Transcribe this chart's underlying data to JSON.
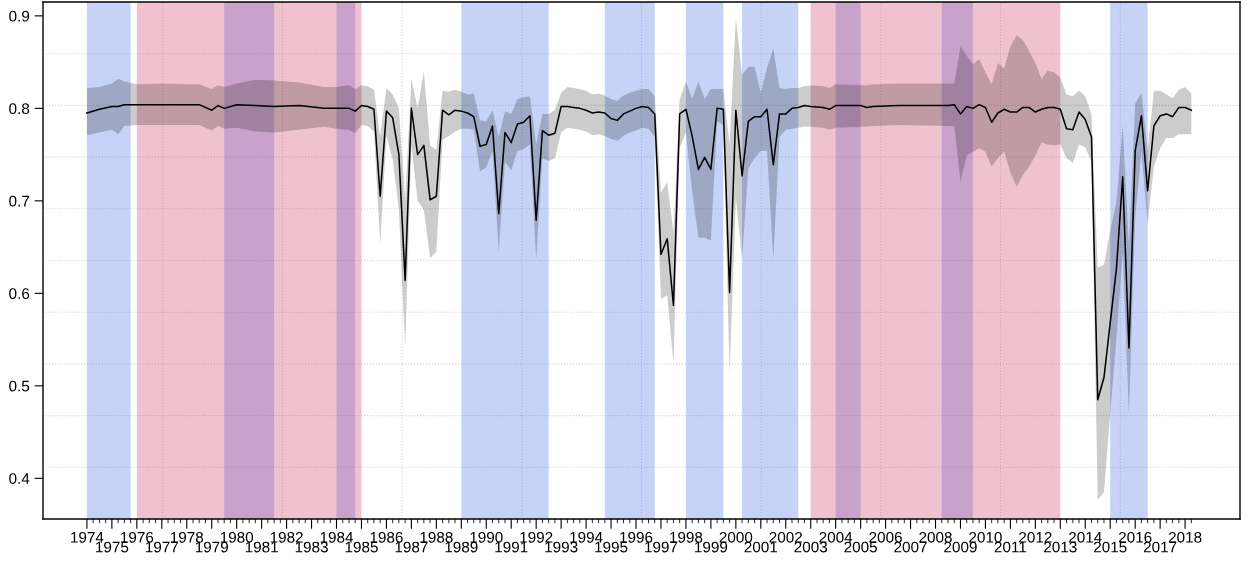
{
  "chart_data": {
    "type": "line",
    "x": [
      1974.0,
      1974.5,
      1975.0,
      1975.25,
      1975.5,
      1976.0,
      1977.0,
      1978.0,
      1978.5,
      1979.0,
      1979.25,
      1979.5,
      1980.0,
      1980.75,
      1981.5,
      1982.5,
      1983.5,
      1984.0,
      1984.5,
      1984.75,
      1985.0,
      1985.25,
      1985.5,
      1985.75,
      1986.0,
      1986.25,
      1986.5,
      1986.75,
      1987.0,
      1987.25,
      1987.5,
      1987.75,
      1988.0,
      1988.25,
      1988.5,
      1988.75,
      1989.0,
      1989.25,
      1989.5,
      1989.75,
      1990.0,
      1990.25,
      1990.5,
      1990.75,
      1991.0,
      1991.25,
      1991.5,
      1991.75,
      1992.0,
      1992.25,
      1992.5,
      1992.75,
      1993.0,
      1993.25,
      1993.5,
      1993.75,
      1994.0,
      1994.25,
      1994.5,
      1994.75,
      1995.0,
      1995.25,
      1995.5,
      1995.75,
      1996.0,
      1996.25,
      1996.5,
      1996.75,
      1997.0,
      1997.25,
      1997.5,
      1997.75,
      1998.0,
      1998.25,
      1998.5,
      1998.75,
      1999.0,
      1999.25,
      1999.5,
      1999.75,
      2000.0,
      2000.25,
      2000.5,
      2000.75,
      2001.0,
      2001.25,
      2001.5,
      2001.75,
      2002.0,
      2002.25,
      2002.5,
      2002.75,
      2003.0,
      2003.5,
      2003.75,
      2004.0,
      2005.0,
      2005.25,
      2005.5,
      2006.5,
      2008.5,
      2008.75,
      2009.0,
      2009.25,
      2009.5,
      2009.75,
      2010.0,
      2010.25,
      2010.5,
      2010.75,
      2011.0,
      2011.25,
      2011.5,
      2011.75,
      2012.0,
      2012.25,
      2012.5,
      2012.75,
      2013.0,
      2013.25,
      2013.5,
      2013.75,
      2014.0,
      2014.25,
      2014.5,
      2014.75,
      2015.0,
      2015.25,
      2015.5,
      2015.75,
      2016.0,
      2016.25,
      2016.5,
      2016.75,
      2017.0,
      2017.25,
      2017.5,
      2017.75,
      2018.0,
      2018.25
    ],
    "series": [
      {
        "color": "#000000",
        "values": [
          0.795,
          0.799,
          0.802,
          0.802,
          0.804,
          0.804,
          0.804,
          0.804,
          0.804,
          0.798,
          0.803,
          0.8,
          0.804,
          0.803,
          0.802,
          0.803,
          0.8,
          0.8,
          0.8,
          0.797,
          0.803,
          0.802,
          0.799,
          0.705,
          0.797,
          0.79,
          0.75,
          0.614,
          0.8,
          0.75,
          0.76,
          0.701,
          0.705,
          0.798,
          0.793,
          0.798,
          0.797,
          0.795,
          0.791,
          0.759,
          0.761,
          0.781,
          0.686,
          0.774,
          0.763,
          0.783,
          0.785,
          0.792,
          0.679,
          0.776,
          0.771,
          0.773,
          0.802,
          0.802,
          0.801,
          0.8,
          0.798,
          0.795,
          0.796,
          0.795,
          0.789,
          0.787,
          0.794,
          0.797,
          0.8,
          0.802,
          0.801,
          0.794,
          0.642,
          0.659,
          0.587,
          0.794,
          0.799,
          0.77,
          0.734,
          0.747,
          0.734,
          0.8,
          0.799,
          0.601,
          0.798,
          0.727,
          0.786,
          0.791,
          0.791,
          0.799,
          0.739,
          0.794,
          0.794,
          0.8,
          0.801,
          0.803,
          0.802,
          0.801,
          0.799,
          0.803,
          0.803,
          0.801,
          0.802,
          0.803,
          0.803,
          0.804,
          0.794,
          0.802,
          0.8,
          0.804,
          0.801,
          0.785,
          0.795,
          0.799,
          0.796,
          0.796,
          0.801,
          0.801,
          0.796,
          0.799,
          0.801,
          0.801,
          0.799,
          0.778,
          0.777,
          0.796,
          0.788,
          0.769,
          0.485,
          0.509,
          0.568,
          0.627,
          0.726,
          0.541,
          0.754,
          0.792,
          0.711,
          0.781,
          0.792,
          0.794,
          0.791,
          0.801,
          0.801,
          0.798
        ],
        "lower": [
          0.771,
          0.774,
          0.777,
          0.772,
          0.781,
          0.782,
          0.782,
          0.782,
          0.782,
          0.776,
          0.781,
          0.778,
          0.779,
          0.775,
          0.774,
          0.777,
          0.78,
          0.778,
          0.777,
          0.773,
          0.782,
          0.781,
          0.775,
          0.653,
          0.77,
          0.745,
          0.69,
          0.541,
          0.76,
          0.7,
          0.69,
          0.638,
          0.645,
          0.766,
          0.77,
          0.775,
          0.778,
          0.778,
          0.777,
          0.732,
          0.736,
          0.754,
          0.645,
          0.742,
          0.733,
          0.754,
          0.756,
          0.761,
          0.637,
          0.746,
          0.743,
          0.746,
          0.774,
          0.779,
          0.778,
          0.777,
          0.775,
          0.771,
          0.772,
          0.77,
          0.767,
          0.765,
          0.77,
          0.774,
          0.776,
          0.779,
          0.778,
          0.769,
          0.594,
          0.598,
          0.524,
          0.757,
          0.774,
          0.71,
          0.66,
          0.66,
          0.657,
          0.786,
          0.782,
          0.513,
          0.703,
          0.637,
          0.735,
          0.746,
          0.754,
          0.754,
          0.637,
          0.769,
          0.777,
          0.778,
          0.779,
          0.78,
          0.78,
          0.779,
          0.777,
          0.779,
          0.78,
          0.78,
          0.781,
          0.782,
          0.781,
          0.781,
          0.721,
          0.749,
          0.753,
          0.757,
          0.753,
          0.737,
          0.746,
          0.753,
          0.731,
          0.715,
          0.728,
          0.737,
          0.749,
          0.763,
          0.761,
          0.76,
          0.761,
          0.746,
          0.741,
          0.761,
          0.758,
          0.742,
          0.377,
          0.385,
          0.469,
          0.551,
          0.644,
          0.469,
          0.682,
          0.753,
          0.675,
          0.737,
          0.757,
          0.768,
          0.768,
          0.772,
          0.772,
          0.772
        ],
        "upper": [
          0.822,
          0.823,
          0.827,
          0.832,
          0.829,
          0.826,
          0.827,
          0.826,
          0.826,
          0.821,
          0.825,
          0.823,
          0.827,
          0.831,
          0.83,
          0.828,
          0.823,
          0.823,
          0.825,
          0.821,
          0.825,
          0.824,
          0.82,
          0.77,
          0.822,
          0.815,
          0.8,
          0.7,
          0.832,
          0.8,
          0.84,
          0.76,
          0.755,
          0.819,
          0.818,
          0.82,
          0.818,
          0.815,
          0.816,
          0.787,
          0.786,
          0.798,
          0.769,
          0.797,
          0.794,
          0.81,
          0.812,
          0.813,
          0.761,
          0.794,
          0.794,
          0.798,
          0.817,
          0.823,
          0.822,
          0.821,
          0.819,
          0.815,
          0.816,
          0.814,
          0.81,
          0.808,
          0.814,
          0.817,
          0.819,
          0.821,
          0.821,
          0.813,
          0.709,
          0.72,
          0.666,
          0.81,
          0.829,
          0.81,
          0.829,
          0.81,
          0.821,
          0.821,
          0.821,
          0.761,
          0.898,
          0.836,
          0.845,
          0.845,
          0.817,
          0.844,
          0.865,
          0.822,
          0.821,
          0.822,
          0.822,
          0.824,
          0.825,
          0.824,
          0.822,
          0.826,
          0.825,
          0.825,
          0.826,
          0.827,
          0.827,
          0.827,
          0.867,
          0.857,
          0.848,
          0.853,
          0.839,
          0.826,
          0.849,
          0.843,
          0.867,
          0.879,
          0.874,
          0.862,
          0.849,
          0.832,
          0.841,
          0.839,
          0.833,
          0.815,
          0.813,
          0.819,
          0.813,
          0.793,
          0.628,
          0.631,
          0.668,
          0.699,
          0.782,
          0.652,
          0.805,
          0.817,
          0.755,
          0.819,
          0.819,
          0.815,
          0.811,
          0.82,
          0.823,
          0.816
        ]
      }
    ],
    "bands": [
      {
        "axis": "x",
        "from": 1974.0,
        "to": 1975.75,
        "color": "#4169e1"
      },
      {
        "axis": "x",
        "from": 1979.5,
        "to": 1981.5,
        "color": "#4169e1"
      },
      {
        "axis": "x",
        "from": 1984.0,
        "to": 1984.75,
        "color": "#4169e1"
      },
      {
        "axis": "x",
        "from": 1989.0,
        "to": 1992.5,
        "color": "#4169e1"
      },
      {
        "axis": "x",
        "from": 1994.75,
        "to": 1996.75,
        "color": "#4169e1"
      },
      {
        "axis": "x",
        "from": 1998.0,
        "to": 1999.5,
        "color": "#4169e1"
      },
      {
        "axis": "x",
        "from": 2000.25,
        "to": 2002.5,
        "color": "#4169e1"
      },
      {
        "axis": "x",
        "from": 2004.0,
        "to": 2005.0,
        "color": "#4169e1"
      },
      {
        "axis": "x",
        "from": 2008.25,
        "to": 2009.5,
        "color": "#4169e1"
      },
      {
        "axis": "x",
        "from": 2015.0,
        "to": 2016.5,
        "color": "#4169e1"
      },
      {
        "axis": "x",
        "from": 1976.0,
        "to": 1985.0,
        "color": "#cd3462"
      },
      {
        "axis": "x",
        "from": 2003.0,
        "to": 2013.0,
        "color": "#cd3462"
      }
    ],
    "xlim": [
      1972.24,
      2020.2
    ],
    "ylim": [
      0.356,
      0.915
    ],
    "yticks": [
      0.4,
      0.5,
      0.6,
      0.7,
      0.8,
      0.9
    ],
    "x2lim": [
      1972.24,
      2020.2
    ],
    "x2ticks": [
      1975,
      1977,
      1979,
      1981,
      1983,
      1985,
      1987,
      1989,
      1991,
      1993,
      1995,
      1997,
      1999,
      2001,
      2003,
      2005,
      2007,
      2009,
      2011,
      2013,
      2015,
      2017
    ],
    "xticks": [
      1974,
      1976,
      1978,
      1980,
      1982,
      1984,
      1986,
      1988,
      1990,
      1992,
      1994,
      1996,
      1998,
      2000,
      2002,
      2004,
      2006,
      2008,
      2010,
      2012,
      2014,
      2016,
      2018,
      {
        "value": 1975,
        "label": null
      },
      {
        "value": 1977,
        "label": null
      },
      {
        "value": 1979,
        "label": null
      },
      {
        "value": 1981,
        "label": null
      },
      {
        "value": 1983,
        "label": null
      },
      {
        "value": 1985,
        "label": null
      },
      {
        "value": 1987,
        "label": null
      },
      {
        "value": 1989,
        "label": null
      },
      {
        "value": 1991,
        "label": null
      },
      {
        "value": 1993,
        "label": null
      },
      {
        "value": 1995,
        "label": null
      },
      {
        "value": 1997,
        "label": null
      },
      {
        "value": 1999,
        "label": null
      },
      {
        "value": 2001,
        "label": null
      },
      {
        "value": 2003,
        "label": null
      },
      {
        "value": 2005,
        "label": null
      },
      {
        "value": 2007,
        "label": null
      },
      {
        "value": 2009,
        "label": null
      },
      {
        "value": 2011,
        "label": null
      },
      {
        "value": 2013,
        "label": null
      },
      {
        "value": 2015,
        "label": null
      },
      {
        "value": 2017,
        "label": null
      },
      {
        "value": 1974.25,
        "label": null
      },
      {
        "value": 1974.5,
        "label": null
      },
      {
        "value": 1974.75,
        "label": null
      },
      {
        "value": 1975.25,
        "label": null
      },
      {
        "value": 1975.5,
        "label": null
      },
      {
        "value": 1975.75,
        "label": null
      },
      {
        "value": 1976.25,
        "label": null
      },
      {
        "value": 1976.5,
        "label": null
      },
      {
        "value": 1976.75,
        "label": null
      },
      {
        "value": 1977.25,
        "label": null
      },
      {
        "value": 1977.5,
        "label": null
      },
      {
        "value": 1977.75,
        "label": null
      },
      {
        "value": 1978.25,
        "label": null
      },
      {
        "value": 1978.5,
        "label": null
      },
      {
        "value": 1978.75,
        "label": null
      },
      {
        "value": 1979.25,
        "label": null
      },
      {
        "value": 1979.5,
        "label": null
      },
      {
        "value": 1979.75,
        "label": null
      },
      {
        "value": 1980.25,
        "label": null
      },
      {
        "value": 1980.5,
        "label": null
      },
      {
        "value": 1980.75,
        "label": null
      },
      {
        "value": 1981.25,
        "label": null
      },
      {
        "value": 1981.5,
        "label": null
      },
      {
        "value": 1981.75,
        "label": null
      },
      {
        "value": 1982.25,
        "label": null
      },
      {
        "value": 1982.5,
        "label": null
      },
      {
        "value": 1982.75,
        "label": null
      },
      {
        "value": 1983.25,
        "label": null
      },
      {
        "value": 1983.5,
        "label": null
      },
      {
        "value": 1983.75,
        "label": null
      },
      {
        "value": 1984.25,
        "label": null
      },
      {
        "value": 1984.5,
        "label": null
      },
      {
        "value": 1984.75,
        "label": null
      },
      {
        "value": 1985.25,
        "label": null
      },
      {
        "value": 1985.5,
        "label": null
      },
      {
        "value": 1985.75,
        "label": null
      },
      {
        "value": 1986.25,
        "label": null
      },
      {
        "value": 1986.5,
        "label": null
      },
      {
        "value": 1986.75,
        "label": null
      },
      {
        "value": 1987.25,
        "label": null
      },
      {
        "value": 1987.5,
        "label": null
      },
      {
        "value": 1987.75,
        "label": null
      },
      {
        "value": 1988.25,
        "label": null
      },
      {
        "value": 1988.5,
        "label": null
      },
      {
        "value": 1988.75,
        "label": null
      },
      {
        "value": 1989.25,
        "label": null
      },
      {
        "value": 1989.5,
        "label": null
      },
      {
        "value": 1989.75,
        "label": null
      },
      {
        "value": 1990.25,
        "label": null
      },
      {
        "value": 1990.5,
        "label": null
      },
      {
        "value": 1990.75,
        "label": null
      },
      {
        "value": 1991.25,
        "label": null
      },
      {
        "value": 1991.5,
        "label": null
      },
      {
        "value": 1991.75,
        "label": null
      },
      {
        "value": 1992.25,
        "label": null
      },
      {
        "value": 1992.5,
        "label": null
      },
      {
        "value": 1992.75,
        "label": null
      },
      {
        "value": 1993.25,
        "label": null
      },
      {
        "value": 1993.5,
        "label": null
      },
      {
        "value": 1993.75,
        "label": null
      },
      {
        "value": 1994.25,
        "label": null
      },
      {
        "value": 1994.5,
        "label": null
      },
      {
        "value": 1994.75,
        "label": null
      },
      {
        "value": 1995.25,
        "label": null
      },
      {
        "value": 1995.5,
        "label": null
      },
      {
        "value": 1995.75,
        "label": null
      },
      {
        "value": 1996.25,
        "label": null
      },
      {
        "value": 1996.5,
        "label": null
      },
      {
        "value": 1996.75,
        "label": null
      },
      {
        "value": 1997.25,
        "label": null
      },
      {
        "value": 1997.5,
        "label": null
      },
      {
        "value": 1997.75,
        "label": null
      },
      {
        "value": 1998.25,
        "label": null
      },
      {
        "value": 1998.5,
        "label": null
      },
      {
        "value": 1998.75,
        "label": null
      },
      {
        "value": 1999.25,
        "label": null
      },
      {
        "value": 1999.5,
        "label": null
      },
      {
        "value": 1999.75,
        "label": null
      },
      {
        "value": 2000.25,
        "label": null
      },
      {
        "value": 2000.5,
        "label": null
      },
      {
        "value": 2000.75,
        "label": null
      },
      {
        "value": 2001.25,
        "label": null
      },
      {
        "value": 2001.5,
        "label": null
      },
      {
        "value": 2001.75,
        "label": null
      },
      {
        "value": 2002.25,
        "label": null
      },
      {
        "value": 2002.5,
        "label": null
      },
      {
        "value": 2002.75,
        "label": null
      },
      {
        "value": 2003.25,
        "label": null
      },
      {
        "value": 2003.5,
        "label": null
      },
      {
        "value": 2003.75,
        "label": null
      },
      {
        "value": 2004.25,
        "label": null
      },
      {
        "value": 2004.5,
        "label": null
      },
      {
        "value": 2004.75,
        "label": null
      },
      {
        "value": 2005.25,
        "label": null
      },
      {
        "value": 2005.5,
        "label": null
      },
      {
        "value": 2005.75,
        "label": null
      },
      {
        "value": 2006.25,
        "label": null
      },
      {
        "value": 2006.5,
        "label": null
      },
      {
        "value": 2006.75,
        "label": null
      },
      {
        "value": 2007.25,
        "label": null
      },
      {
        "value": 2007.5,
        "label": null
      },
      {
        "value": 2007.75,
        "label": null
      },
      {
        "value": 2008.25,
        "label": null
      },
      {
        "value": 2008.5,
        "label": null
      },
      {
        "value": 2008.75,
        "label": null
      },
      {
        "value": 2009.25,
        "label": null
      },
      {
        "value": 2009.5,
        "label": null
      },
      {
        "value": 2009.75,
        "label": null
      },
      {
        "value": 2010.25,
        "label": null
      },
      {
        "value": 2010.5,
        "label": null
      },
      {
        "value": 2010.75,
        "label": null
      },
      {
        "value": 2011.25,
        "label": null
      },
      {
        "value": 2011.5,
        "label": null
      },
      {
        "value": 2011.75,
        "label": null
      },
      {
        "value": 2012.25,
        "label": null
      },
      {
        "value": 2012.5,
        "label": null
      },
      {
        "value": 2012.75,
        "label": null
      },
      {
        "value": 2013.25,
        "label": null
      },
      {
        "value": 2013.5,
        "label": null
      },
      {
        "value": 2013.75,
        "label": null
      },
      {
        "value": 2014.25,
        "label": null
      },
      {
        "value": 2014.5,
        "label": null
      },
      {
        "value": 2014.75,
        "label": null
      },
      {
        "value": 2015.25,
        "label": null
      },
      {
        "value": 2015.5,
        "label": null
      },
      {
        "value": 2015.75,
        "label": null
      },
      {
        "value": 2016.25,
        "label": null
      },
      {
        "value": 2016.5,
        "label": null
      },
      {
        "value": 2016.75,
        "label": null
      },
      {
        "value": 2017.25,
        "label": null
      },
      {
        "value": 2017.5,
        "label": null
      },
      {
        "value": 2017.75,
        "label": null
      },
      {
        "value": 2018.25,
        "label": null
      }
    ],
    "grid": true
  }
}
